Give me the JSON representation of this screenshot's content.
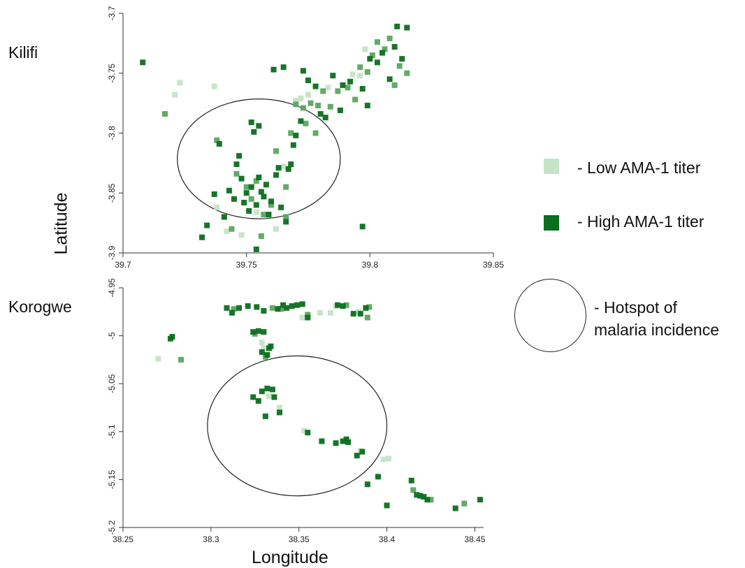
{
  "panels": {
    "kilifi_label": "Kilifi",
    "korogwe_label": "Korogwe"
  },
  "axis_titles": {
    "y": "Latitude",
    "x": "Longitude"
  },
  "legend": {
    "low": "- Low AMA-1 titer",
    "high": "- High AMA-1 titer",
    "hotspot_line1": "- Hotspot of",
    "hotspot_line2": "malaria incidence"
  },
  "colors": {
    "low": "#c6e3c8",
    "mid": "#5aa65e",
    "high": "#0b6e1e",
    "hotspot_outline": "#222222"
  },
  "chart_data": [
    {
      "type": "scatter",
      "title": "Kilifi",
      "xlabel": "",
      "ylabel": "Latitude",
      "xlim": [
        39.7,
        39.85
      ],
      "ylim": [
        -3.9,
        -3.7
      ],
      "xticks": [
        "39.7",
        "39.75",
        "39.8",
        "39.85"
      ],
      "yticks": [
        "-3.7",
        "-3.75",
        "-3.8",
        "-3.85",
        "-3.9"
      ],
      "grid": false,
      "hotspot": {
        "center": [
          39.755,
          -3.8215
        ],
        "radius_x": 0.033,
        "radius_y": 0.05
      },
      "series": [
        {
          "name": "Low AMA-1 titer",
          "color": "#c6e3c8",
          "points": [
            [
              39.721,
              -3.768
            ],
            [
              39.723,
              -3.758
            ],
            [
              39.737,
              -3.761
            ],
            [
              39.77,
              -3.773
            ],
            [
              39.772,
              -3.771
            ],
            [
              39.775,
              -3.768
            ],
            [
              39.793,
              -3.751
            ],
            [
              39.796,
              -3.752
            ],
            [
              39.798,
              -3.73
            ],
            [
              39.738,
              -3.862
            ],
            [
              39.742,
              -3.882
            ],
            [
              39.748,
              -3.885
            ],
            [
              39.754,
              -3.866
            ],
            [
              39.762,
              -3.88
            ],
            [
              39.765,
              -3.828
            ],
            [
              39.783,
              -3.762
            ]
          ]
        },
        {
          "name": "",
          "color": "#5aa65e",
          "points": [
            [
              39.717,
              -3.784
            ],
            [
              39.738,
              -3.806
            ],
            [
              39.746,
              -3.834
            ],
            [
              39.75,
              -3.845
            ],
            [
              39.752,
              -3.855
            ],
            [
              39.754,
              -3.84
            ],
            [
              39.757,
              -3.868
            ],
            [
              39.76,
              -3.86
            ],
            [
              39.762,
              -3.815
            ],
            [
              39.766,
              -3.845
            ],
            [
              39.77,
              -3.776
            ],
            [
              39.773,
              -3.779
            ],
            [
              39.776,
              -3.775
            ],
            [
              39.779,
              -3.777
            ],
            [
              39.781,
              -3.765
            ],
            [
              39.784,
              -3.778
            ],
            [
              39.787,
              -3.765
            ],
            [
              39.791,
              -3.762
            ],
            [
              39.794,
              -3.772
            ],
            [
              39.796,
              -3.745
            ],
            [
              39.799,
              -3.749
            ],
            [
              39.801,
              -3.735
            ],
            [
              39.803,
              -3.724
            ],
            [
              39.806,
              -3.73
            ],
            [
              39.808,
              -3.721
            ],
            [
              39.81,
              -3.76
            ],
            [
              39.812,
              -3.744
            ],
            [
              39.815,
              -3.75
            ],
            [
              39.744,
              -3.88
            ],
            [
              39.756,
              -3.886
            ],
            [
              39.766,
              -3.87
            ],
            [
              39.768,
              -3.8
            ],
            [
              39.774,
              -3.792
            ],
            [
              39.778,
              -3.8
            ]
          ]
        },
        {
          "name": "",
          "color": "#0b6e1e",
          "points": [
            [
              39.708,
              -3.741
            ],
            [
              39.732,
              -3.887
            ],
            [
              39.734,
              -3.877
            ],
            [
              39.737,
              -3.851
            ],
            [
              39.739,
              -3.809
            ],
            [
              39.741,
              -3.87
            ],
            [
              39.743,
              -3.848
            ],
            [
              39.745,
              -3.855
            ],
            [
              39.746,
              -3.826
            ],
            [
              39.747,
              -3.819
            ],
            [
              39.748,
              -3.838
            ],
            [
              39.749,
              -3.858
            ],
            [
              39.75,
              -3.85
            ],
            [
              39.751,
              -3.865
            ],
            [
              39.752,
              -3.791
            ],
            [
              39.752,
              -3.845
            ],
            [
              39.753,
              -3.799
            ],
            [
              39.754,
              -3.86
            ],
            [
              39.755,
              -3.794
            ],
            [
              39.755,
              -3.837
            ],
            [
              39.756,
              -3.849
            ],
            [
              39.757,
              -3.853
            ],
            [
              39.758,
              -3.843
            ],
            [
              39.759,
              -3.868
            ],
            [
              39.76,
              -3.857
            ],
            [
              39.761,
              -3.747
            ],
            [
              39.762,
              -3.835
            ],
            [
              39.763,
              -3.829
            ],
            [
              39.764,
              -3.862
            ],
            [
              39.765,
              -3.745
            ],
            [
              39.766,
              -3.874
            ],
            [
              39.767,
              -3.83
            ],
            [
              39.768,
              -3.826
            ],
            [
              39.769,
              -3.81
            ],
            [
              39.77,
              -3.802
            ],
            [
              39.772,
              -3.79
            ],
            [
              39.773,
              -3.748
            ],
            [
              39.775,
              -3.756
            ],
            [
              39.778,
              -3.761
            ],
            [
              39.78,
              -3.784
            ],
            [
              39.782,
              -3.787
            ],
            [
              39.785,
              -3.752
            ],
            [
              39.788,
              -3.781
            ],
            [
              39.789,
              -3.76
            ],
            [
              39.792,
              -3.757
            ],
            [
              39.797,
              -3.763
            ],
            [
              39.797,
              -3.878
            ],
            [
              39.799,
              -3.777
            ],
            [
              39.8,
              -3.738
            ],
            [
              39.803,
              -3.741
            ],
            [
              39.805,
              -3.733
            ],
            [
              39.808,
              -3.755
            ],
            [
              39.81,
              -3.728
            ],
            [
              39.811,
              -3.711
            ],
            [
              39.813,
              -3.738
            ],
            [
              39.815,
              -3.712
            ],
            [
              39.754,
              -3.897
            ]
          ]
        }
      ]
    },
    {
      "type": "scatter",
      "title": "Korogwe",
      "xlabel": "Longitude",
      "ylabel": "",
      "xlim": [
        38.25,
        38.455
      ],
      "ylim": [
        -5.2,
        -4.95
      ],
      "xticks": [
        "38.25",
        "38.3",
        "38.35",
        "38.4",
        "38.45"
      ],
      "yticks": [
        "-4.95",
        "-5",
        "-5.05",
        "-5.1",
        "-5.15",
        "-5.2"
      ],
      "grid": false,
      "hotspot": {
        "center": [
          38.349,
          -5.094
        ],
        "radius_x": 0.051,
        "radius_y": 0.073
      },
      "series": [
        {
          "name": "Low AMA-1 titer",
          "color": "#c6e3c8",
          "points": [
            [
              38.27,
              -5.024
            ],
            [
              38.329,
              -5.007
            ],
            [
              38.33,
              -5.013
            ],
            [
              38.333,
              -5.063
            ],
            [
              38.339,
              -5.075
            ],
            [
              38.352,
              -4.981
            ],
            [
              38.362,
              -4.976
            ],
            [
              38.368,
              -4.976
            ],
            [
              38.371,
              -4.969
            ],
            [
              38.384,
              -4.975
            ],
            [
              38.385,
              -5.12
            ],
            [
              38.398,
              -5.129
            ],
            [
              38.401,
              -5.128
            ],
            [
              38.353,
              -5.099
            ]
          ]
        },
        {
          "name": "",
          "color": "#5aa65e",
          "points": [
            [
              38.283,
              -5.025
            ],
            [
              38.313,
              -4.972
            ],
            [
              38.325,
              -4.998
            ],
            [
              38.331,
              -5.022
            ],
            [
              38.335,
              -4.971
            ],
            [
              38.34,
              -4.972
            ],
            [
              38.355,
              -4.978
            ],
            [
              38.377,
              -4.968
            ],
            [
              38.389,
              -4.981
            ],
            [
              38.39,
              -4.97
            ],
            [
              38.415,
              -5.161
            ],
            [
              38.425,
              -5.171
            ],
            [
              38.444,
              -5.175
            ]
          ]
        },
        {
          "name": "",
          "color": "#0b6e1e",
          "points": [
            [
              38.277,
              -5.003
            ],
            [
              38.278,
              -5.001
            ],
            [
              38.309,
              -4.971
            ],
            [
              38.312,
              -4.976
            ],
            [
              38.316,
              -4.971
            ],
            [
              38.321,
              -4.969
            ],
            [
              38.324,
              -4.996
            ],
            [
              38.327,
              -4.995
            ],
            [
              38.33,
              -4.996
            ],
            [
              38.329,
              -5.017
            ],
            [
              38.332,
              -5.02
            ],
            [
              38.333,
              -5.013
            ],
            [
              38.334,
              -5.011
            ],
            [
              38.324,
              -5.064
            ],
            [
              38.327,
              -5.068
            ],
            [
              38.329,
              -5.058
            ],
            [
              38.332,
              -5.055
            ],
            [
              38.335,
              -5.056
            ],
            [
              38.336,
              -5.064
            ],
            [
              38.331,
              -5.084
            ],
            [
              38.339,
              -5.08
            ],
            [
              38.326,
              -4.97
            ],
            [
              38.33,
              -4.974
            ],
            [
              38.338,
              -4.972
            ],
            [
              38.341,
              -4.968
            ],
            [
              38.343,
              -4.971
            ],
            [
              38.346,
              -4.969
            ],
            [
              38.349,
              -4.968
            ],
            [
              38.352,
              -4.967
            ],
            [
              38.355,
              -4.981
            ],
            [
              38.372,
              -4.968
            ],
            [
              38.375,
              -4.969
            ],
            [
              38.381,
              -4.977
            ],
            [
              38.385,
              -4.977
            ],
            [
              38.388,
              -4.971
            ],
            [
              38.355,
              -5.101
            ],
            [
              38.363,
              -5.11
            ],
            [
              38.371,
              -5.112
            ],
            [
              38.375,
              -5.11
            ],
            [
              38.377,
              -5.108
            ],
            [
              38.378,
              -5.111
            ],
            [
              38.383,
              -5.125
            ],
            [
              38.386,
              -5.121
            ],
            [
              38.389,
              -5.155
            ],
            [
              38.395,
              -5.147
            ],
            [
              38.4,
              -5.177
            ],
            [
              38.414,
              -5.151
            ],
            [
              38.417,
              -5.166
            ],
            [
              38.419,
              -5.167
            ],
            [
              38.421,
              -5.168
            ],
            [
              38.423,
              -5.171
            ],
            [
              38.439,
              -5.18
            ],
            [
              38.453,
              -5.171
            ]
          ]
        }
      ]
    }
  ]
}
